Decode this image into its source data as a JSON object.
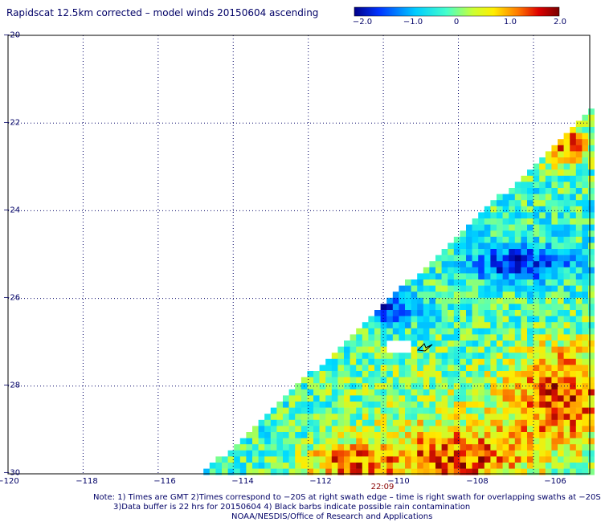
{
  "title": "Rapidscat 12.5km corrected – model winds 20150604 ascending",
  "colorbar": {
    "ticks": [
      "−2.0",
      "−1.0",
      "0",
      "1.0",
      "2.0"
    ],
    "range": [
      -2.0,
      2.0
    ],
    "colors": [
      "#000088",
      "#0033ff",
      "#00ddff",
      "#77ff88",
      "#ffee00",
      "#ff7700",
      "#cc0000",
      "#770000"
    ]
  },
  "map": {
    "lon_range": [
      -120,
      -104.5
    ],
    "lat_range": [
      -30,
      -20
    ],
    "x_ticks": [
      "−120",
      "−118",
      "−116",
      "−114",
      "−112",
      "−110",
      "−108",
      "−106"
    ],
    "y_ticks": [
      "−20",
      "−22",
      "−24",
      "−26",
      "−28",
      "−30"
    ],
    "grid": "dotted",
    "swath_time": "22:09",
    "swath_edge_lon_at_lat30": -114.8,
    "swath_edge_lon_at_lat22": -104.8,
    "no_data_patch_center": [
      -109.6,
      -27.1
    ],
    "rain_barb_location": [
      -109.6,
      -27.0
    ]
  },
  "notes": {
    "line1": "Note: 1) Times are GMT 2)Times correspond to −20S at right swath edge – time is right swath for overlapping swaths at −20S",
    "line2": "3)Data buffer is 22 hrs for 20150604 4) Black barbs indicate possible rain contamination",
    "line3": "NOAA/NESDIS/Office of Research and Applications"
  }
}
